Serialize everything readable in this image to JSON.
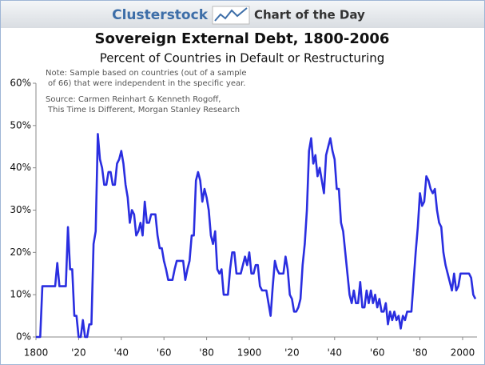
{
  "header": {
    "brand": "Clusterstock",
    "tagline": "Chart of the Day"
  },
  "chart_data": {
    "type": "line",
    "title": "Sovereign External Debt, 1800-2006",
    "subtitle": "Percent of Countries in Default or Restructuring",
    "note": [
      "Note: Sample based on countries (out of a sample",
      "of 66)  that were independent in the specific year."
    ],
    "source": [
      "Source: Carmen Reinhart & Kenneth Rogoff,",
      "This Time Is Different, Morgan Stanley Research"
    ],
    "x": [
      1800,
      1801,
      1802,
      1803,
      1804,
      1805,
      1806,
      1807,
      1808,
      1809,
      1810,
      1811,
      1812,
      1813,
      1814,
      1815,
      1816,
      1817,
      1818,
      1819,
      1820,
      1821,
      1822,
      1823,
      1824,
      1825,
      1826,
      1827,
      1828,
      1829,
      1830,
      1831,
      1832,
      1833,
      1834,
      1835,
      1836,
      1837,
      1838,
      1839,
      1840,
      1841,
      1842,
      1843,
      1844,
      1845,
      1846,
      1847,
      1848,
      1849,
      1850,
      1851,
      1852,
      1853,
      1854,
      1855,
      1856,
      1857,
      1858,
      1859,
      1860,
      1861,
      1862,
      1863,
      1864,
      1865,
      1866,
      1867,
      1868,
      1869,
      1870,
      1871,
      1872,
      1873,
      1874,
      1875,
      1876,
      1877,
      1878,
      1879,
      1880,
      1881,
      1882,
      1883,
      1884,
      1885,
      1886,
      1887,
      1888,
      1889,
      1890,
      1891,
      1892,
      1893,
      1894,
      1895,
      1896,
      1897,
      1898,
      1899,
      1900,
      1901,
      1902,
      1903,
      1904,
      1905,
      1906,
      1907,
      1908,
      1909,
      1910,
      1911,
      1912,
      1913,
      1914,
      1915,
      1916,
      1917,
      1918,
      1919,
      1920,
      1921,
      1922,
      1923,
      1924,
      1925,
      1926,
      1927,
      1928,
      1929,
      1930,
      1931,
      1932,
      1933,
      1934,
      1935,
      1936,
      1937,
      1938,
      1939,
      1940,
      1941,
      1942,
      1943,
      1944,
      1945,
      1946,
      1947,
      1948,
      1949,
      1950,
      1951,
      1952,
      1953,
      1954,
      1955,
      1956,
      1957,
      1958,
      1959,
      1960,
      1961,
      1962,
      1963,
      1964,
      1965,
      1966,
      1967,
      1968,
      1969,
      1970,
      1971,
      1972,
      1973,
      1974,
      1975,
      1976,
      1977,
      1978,
      1979,
      1980,
      1981,
      1982,
      1983,
      1984,
      1985,
      1986,
      1987,
      1988,
      1989,
      1990,
      1991,
      1992,
      1993,
      1994,
      1995,
      1996,
      1997,
      1998,
      1999,
      2000,
      2001,
      2002,
      2003,
      2004,
      2005,
      2006
    ],
    "series": [
      {
        "color": "#2a2ee0",
        "values": [
          0,
          0,
          0,
          12,
          12,
          12,
          12,
          12,
          12,
          12,
          17.5,
          12,
          12,
          12,
          12,
          26,
          16,
          16,
          5,
          5,
          0,
          0,
          4,
          0,
          0,
          3,
          3,
          22,
          25,
          48,
          42,
          40,
          36,
          36,
          39,
          39,
          36,
          36,
          41,
          42,
          44,
          41,
          36,
          33,
          27,
          30,
          29,
          24,
          25,
          27,
          24,
          32,
          27,
          27,
          29,
          29,
          29,
          24,
          21,
          21,
          18,
          16,
          13.5,
          13.5,
          13.5,
          16,
          18,
          18,
          18,
          18,
          13.5,
          16,
          18,
          24,
          24,
          37,
          39,
          37,
          32,
          35,
          33,
          30,
          24,
          22,
          25,
          16,
          15,
          16,
          10,
          10,
          10,
          16,
          20,
          20,
          15,
          15,
          15,
          17,
          19,
          17,
          20,
          15,
          15,
          17,
          17,
          12,
          11,
          11,
          11,
          8,
          5,
          12,
          18,
          16,
          15,
          15,
          15,
          19,
          16,
          10,
          9,
          6,
          6,
          7,
          9,
          17,
          22,
          30,
          44,
          47,
          41,
          43,
          38,
          40,
          37,
          34,
          43,
          45,
          47,
          44,
          42,
          35,
          35,
          27,
          25,
          20,
          15,
          10,
          8,
          11,
          8,
          8,
          13,
          7,
          7,
          11,
          8,
          11,
          8,
          10,
          7,
          9,
          6,
          6,
          8,
          3,
          6,
          4,
          6,
          4,
          5,
          2,
          5,
          4,
          6,
          6,
          6,
          13,
          20,
          26,
          34,
          31,
          32,
          38,
          37,
          35,
          34,
          35,
          30,
          27,
          26,
          20,
          17,
          15,
          13,
          11,
          15,
          11,
          12,
          15,
          15,
          15,
          15,
          15,
          14,
          10,
          9
        ]
      }
    ],
    "xlim": [
      1800,
      2006
    ],
    "xticks": [
      {
        "value": 1800,
        "label": "1800"
      },
      {
        "value": 1820,
        "label": "'20"
      },
      {
        "value": 1840,
        "label": "'40"
      },
      {
        "value": 1860,
        "label": "'60"
      },
      {
        "value": 1880,
        "label": "'80"
      },
      {
        "value": 1900,
        "label": "1900"
      },
      {
        "value": 1920,
        "label": "'20"
      },
      {
        "value": 1940,
        "label": "'40"
      },
      {
        "value": 1960,
        "label": "'60"
      },
      {
        "value": 1980,
        "label": "'80"
      },
      {
        "value": 2000,
        "label": "2000"
      }
    ],
    "ylim": [
      0,
      60
    ],
    "yticks": [
      {
        "value": 0,
        "label": "0%"
      },
      {
        "value": 10,
        "label": "10%"
      },
      {
        "value": 20,
        "label": "20%"
      },
      {
        "value": 30,
        "label": "30%"
      },
      {
        "value": 40,
        "label": "40%"
      },
      {
        "value": 50,
        "label": "50%"
      },
      {
        "value": 60,
        "label": "60%"
      }
    ],
    "grid": false
  }
}
